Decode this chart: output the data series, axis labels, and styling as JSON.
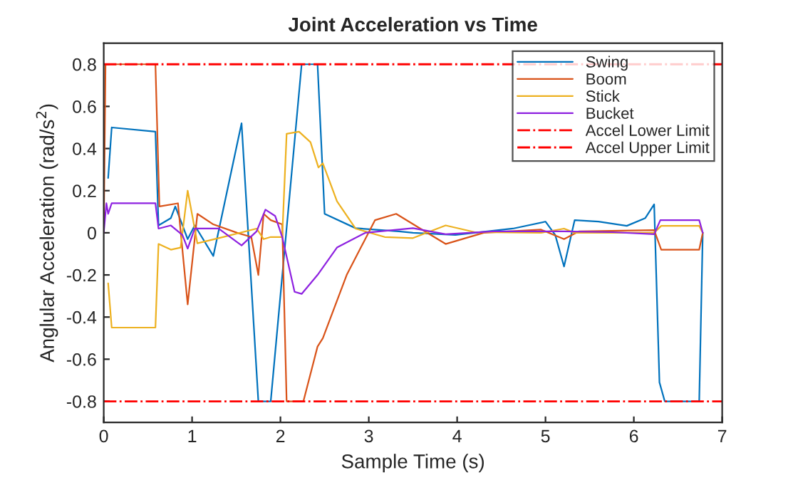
{
  "chart_data": {
    "type": "line",
    "title": "Joint Acceleration vs Time",
    "xlabel": "Sample Time (s)",
    "ylabel": "Anglular Acceleration (rad/s$^{2}$)",
    "xlim": [
      0,
      7
    ],
    "ylim": [
      -0.9,
      0.9
    ],
    "xticks": [
      0,
      1,
      2,
      3,
      4,
      5,
      6,
      7
    ],
    "yticks": [
      {
        "value": -0.8,
        "label": "-0.8"
      },
      {
        "value": -0.6,
        "label": "-0.6"
      },
      {
        "value": -0.4,
        "label": "-0.4"
      },
      {
        "value": -0.2,
        "label": "-0.2"
      },
      0,
      0.2,
      0.4,
      0.6,
      0.8
    ],
    "grid": false,
    "legend": "top right",
    "line_style": "solid",
    "marker": "none",
    "series": [
      {
        "name": "Swing",
        "color": "#0072bd",
        "x": [
          0.05,
          0.09,
          0.585,
          0.62,
          0.76,
          0.81,
          0.95,
          1.03,
          1.24,
          1.56,
          1.75,
          1.89,
          2.24,
          2.42,
          2.5,
          2.85,
          3.34,
          3.5,
          3.98,
          4.63,
          5.0,
          5.11,
          5.21,
          5.33,
          5.6,
          5.92,
          6.13,
          6.23,
          6.29,
          6.35,
          6.74,
          6.78
        ],
        "values": [
          0.26,
          0.5,
          0.48,
          0.035,
          0.07,
          0.125,
          -0.03,
          0.035,
          -0.11,
          0.52,
          -0.8,
          -0.8,
          0.8,
          0.8,
          0.09,
          0.022,
          0.007,
          0.0,
          -0.01,
          0.02,
          0.053,
          -0.01,
          -0.16,
          0.06,
          0.053,
          0.033,
          0.07,
          0.135,
          -0.71,
          -0.8,
          -0.8,
          0.0
        ]
      },
      {
        "name": "Boom",
        "color": "#d95319",
        "x": [
          0,
          0.02,
          0.585,
          0.63,
          0.84,
          0.95,
          1.06,
          1.24,
          1.51,
          1.67,
          1.75,
          1.81,
          1.89,
          2.02,
          2.07,
          2.26,
          2.42,
          2.48,
          2.75,
          3.07,
          3.31,
          3.61,
          3.87,
          4.3,
          4.95,
          5.21,
          5.38,
          6.23,
          6.31,
          6.74,
          6.78
        ],
        "values": [
          0.0,
          0.8,
          0.8,
          0.125,
          0.14,
          -0.34,
          0.09,
          0.04,
          0.0,
          -0.02,
          -0.2,
          0.09,
          0.06,
          0.04,
          -0.8,
          -0.8,
          -0.54,
          -0.5,
          -0.2,
          0.06,
          0.09,
          0.013,
          -0.053,
          0.0,
          0.015,
          -0.03,
          0.007,
          0.013,
          -0.08,
          -0.08,
          0.0
        ]
      },
      {
        "name": "Stick",
        "color": "#edb120",
        "x": [
          0.05,
          0.09,
          0.585,
          0.62,
          0.76,
          0.87,
          0.95,
          1.06,
          1.35,
          1.73,
          1.81,
          1.89,
          2.02,
          2.07,
          2.21,
          2.34,
          2.43,
          2.48,
          2.64,
          2.85,
          3.18,
          3.5,
          3.87,
          4.2,
          4.95,
          5.21,
          5.33,
          6.23,
          6.31,
          6.74,
          6.78
        ],
        "values": [
          -0.24,
          -0.45,
          -0.45,
          -0.053,
          -0.08,
          -0.07,
          0.2,
          -0.05,
          -0.02,
          0.02,
          -0.03,
          -0.02,
          -0.02,
          0.47,
          0.48,
          0.43,
          0.31,
          0.33,
          0.15,
          0.02,
          -0.02,
          -0.025,
          0.035,
          0.003,
          0.0,
          0.02,
          0.0,
          0.0,
          0.033,
          0.033,
          0.0
        ]
      },
      {
        "name": "Bucket",
        "color": "#8e22e0",
        "x": [
          0,
          0.03,
          0.05,
          0.09,
          0.585,
          0.62,
          0.76,
          0.89,
          0.95,
          1.03,
          1.3,
          1.56,
          1.73,
          1.83,
          1.94,
          2.02,
          2.16,
          2.24,
          2.42,
          2.64,
          2.96,
          3.5,
          3.87,
          4.41,
          5.21,
          5.76,
          6.23,
          6.3,
          6.74,
          6.78
        ],
        "values": [
          0.0,
          0.14,
          0.09,
          0.14,
          0.14,
          0.02,
          0.035,
          -0.01,
          -0.075,
          0.02,
          0.02,
          -0.06,
          0.007,
          0.11,
          0.08,
          -0.02,
          -0.28,
          -0.29,
          -0.2,
          -0.07,
          0.0,
          0.022,
          -0.007,
          0.007,
          0.007,
          0.003,
          -0.007,
          0.06,
          0.06,
          0.0
        ]
      }
    ],
    "ref_lines": [
      {
        "axis": "y",
        "value": -0.8,
        "label": "Accel Lower Limit",
        "color": "#ff0000",
        "line_style": "dashdot"
      },
      {
        "axis": "y",
        "value": 0.8,
        "label": "Accel Upper Limit",
        "color": "#ff0000",
        "line_style": "dashdot"
      }
    ]
  }
}
